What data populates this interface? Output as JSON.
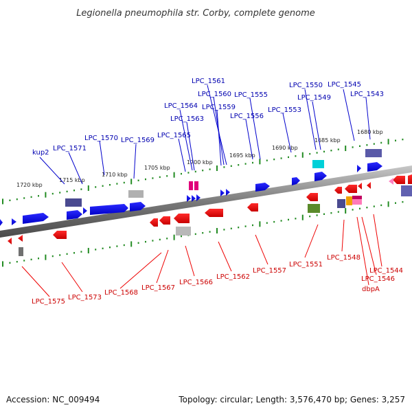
{
  "title": "Legionella pneumophila str. Corby, complete genome",
  "footer": {
    "accession": "Accession: NC_009494",
    "summary": "Topology: circular; Length: 3,576,470 bp; Genes: 3,257"
  },
  "scale_labels": [
    "1720 kbp",
    "1715 kbp",
    "1710 kbp",
    "1705 kbp",
    "1700 kbp",
    "1695 kbp",
    "1690 kbp",
    "1685 kbp",
    "1680 kbp"
  ],
  "top_genes": [
    "kup2",
    "LPC_1571",
    "LPC_1570",
    "LPC_1569",
    "LPC_1565",
    "LPC_1564",
    "LPC_1563",
    "LPC_1561",
    "LPC_1560",
    "LPC_1559",
    "LPC_1556",
    "LPC_1555",
    "LPC_1553",
    "LPC_1550",
    "LPC_1549",
    "LPC_1545",
    "LPC_1543"
  ],
  "bottom_genes": [
    "LPC_1575",
    "LPC_1573",
    "LPC_1568",
    "LPC_1567",
    "LPC_1566",
    "LPC_1562",
    "LPC_1557",
    "LPC_1551",
    "LPC_1548",
    "LPC_1546",
    "dbpA",
    "LPC_1544"
  ],
  "colors": {
    "forward_strand": "#0000ee",
    "reverse_strand": "#ee0000",
    "backbone": "#808080",
    "tick": "#228b22",
    "top_label": "#0000b0",
    "bottom_label": "#cc0000"
  }
}
